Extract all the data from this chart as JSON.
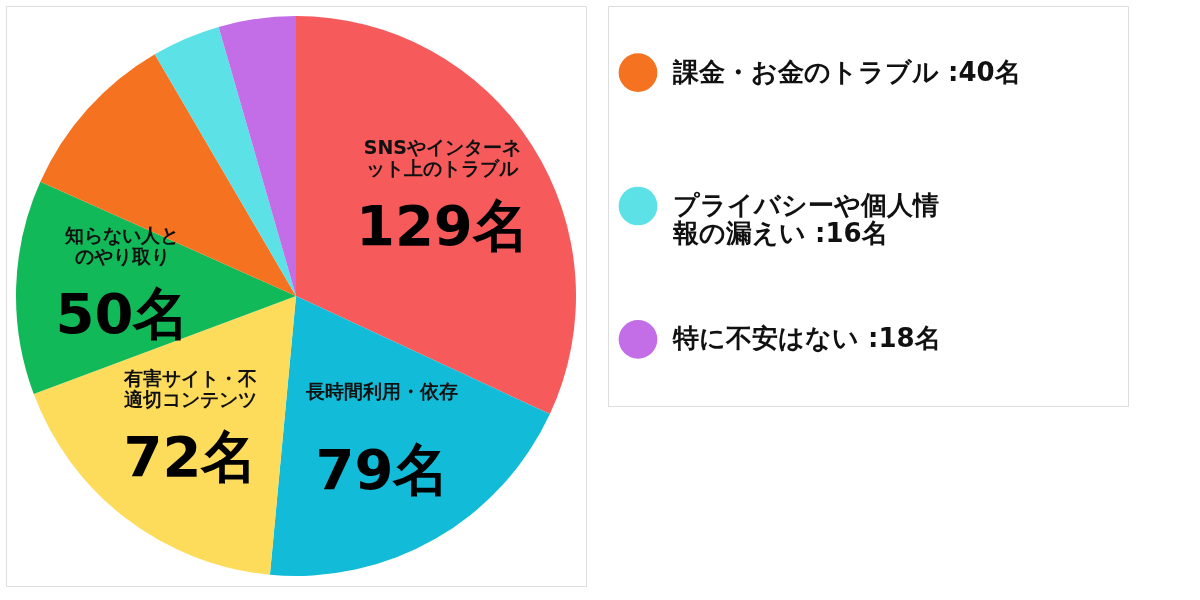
{
  "chart_data": {
    "type": "pie",
    "categories": [
      "SNSやインターネット上のトラブル",
      "長時間利用・依存",
      "有害サイト・不適切コンテンツ",
      "知らない人とのやり取り",
      "課金・お金のトラブル :40名",
      "プライバシーや個人情報の漏えい :16名",
      "特に不安はない :18名"
    ],
    "values": [
      129,
      79,
      72,
      50,
      40,
      16,
      18
    ],
    "value_labels": [
      "129名",
      "79名",
      "72名",
      "50名",
      null,
      null,
      null
    ],
    "colors": [
      "#f65a5b",
      "#12bcd8",
      "#fddc5c",
      "#12b958",
      "#f47220",
      "#5ce1e6",
      "#c36ee6"
    ],
    "legend": "right"
  }
}
